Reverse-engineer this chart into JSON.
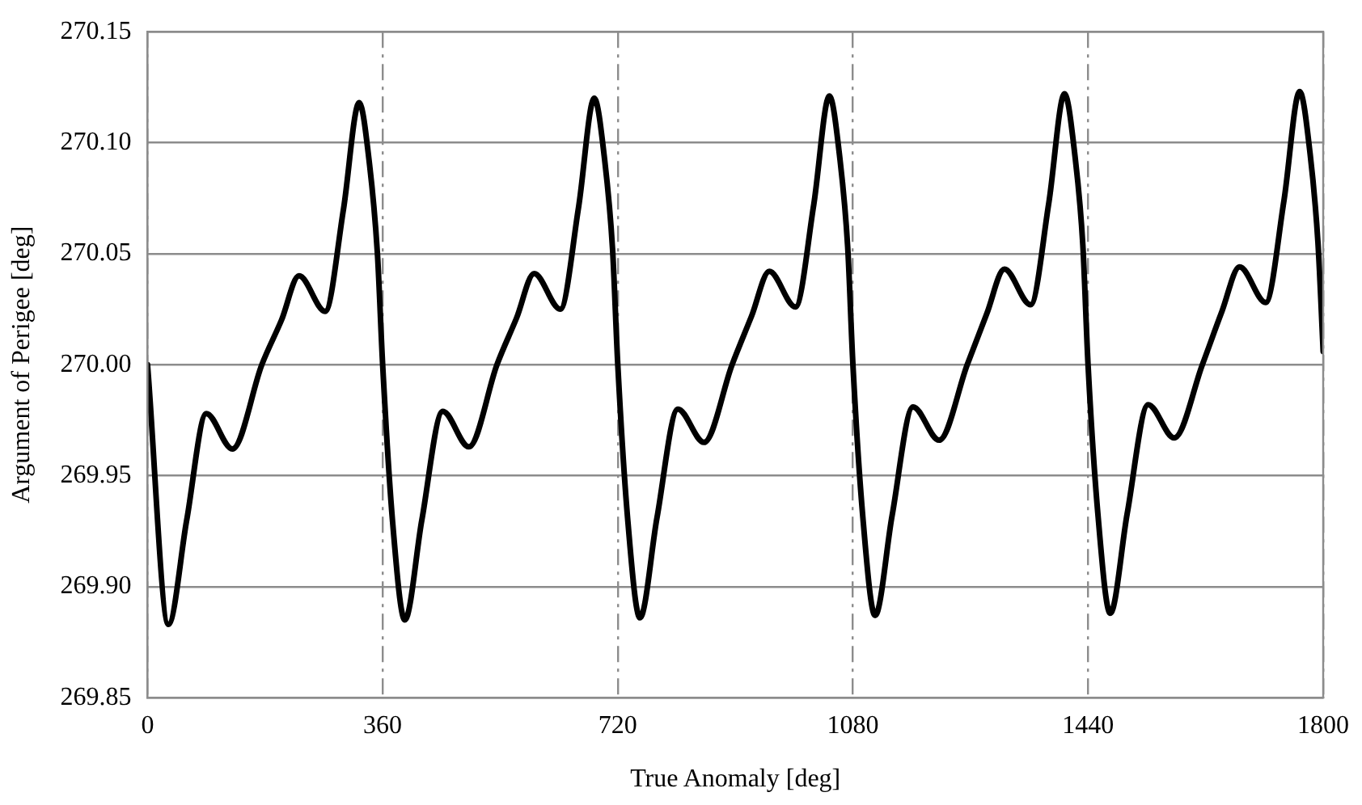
{
  "chart_data": {
    "type": "line",
    "xlabel": "True Anomaly [deg]",
    "ylabel": "Argument of Perigee [deg]",
    "xlim": [
      0,
      1800
    ],
    "xticks": [
      0,
      360,
      720,
      1080,
      1440,
      1800
    ],
    "ylim": [
      269.85,
      270.15
    ],
    "yticks": [
      {
        "value": 269.85,
        "label": "269.85"
      },
      {
        "value": 269.9,
        "label": "269.90"
      },
      {
        "value": 269.95,
        "label": "269.95"
      },
      {
        "value": 270,
        "label": "270.00"
      },
      {
        "value": 270.05,
        "label": "270.05"
      },
      {
        "value": 270.1,
        "label": "270.10"
      },
      {
        "value": 270.15,
        "label": "270.15"
      }
    ],
    "grid": true,
    "line_style": "solid",
    "marker": "none",
    "legend": false,
    "series": [
      {
        "color": "#000000",
        "x": [
          0,
          32,
          60,
          90,
          130,
          175,
          205,
          232,
          272,
          300,
          324,
          340,
          352,
          360,
          375,
          394,
          420,
          452,
          492,
          535,
          565,
          592,
          632,
          660,
          684,
          700,
          712,
          720,
          735,
          754,
          780,
          812,
          852,
          895,
          925,
          952,
          992,
          1020,
          1044,
          1060,
          1072,
          1080,
          1095,
          1114,
          1140,
          1172,
          1212,
          1255,
          1285,
          1312,
          1352,
          1380,
          1404,
          1420,
          1432,
          1440,
          1455,
          1474,
          1500,
          1532,
          1572,
          1615,
          1645,
          1672,
          1712,
          1740,
          1764,
          1780,
          1792,
          1800
        ],
        "values": [
          270.0,
          269.883,
          269.93,
          269.978,
          269.962,
          270.0,
          270.02,
          270.04,
          270.024,
          270.07,
          270.118,
          270.09,
          270.05,
          270.0,
          269.93,
          269.885,
          269.93,
          269.979,
          269.963,
          270.0,
          270.021,
          270.041,
          270.025,
          270.071,
          270.12,
          270.092,
          270.052,
          270.0,
          269.931,
          269.886,
          269.931,
          269.98,
          269.965,
          270.0,
          270.022,
          270.042,
          270.026,
          270.072,
          270.121,
          270.093,
          270.053,
          270.0,
          269.932,
          269.887,
          269.932,
          269.981,
          269.966,
          270.0,
          270.023,
          270.043,
          270.027,
          270.073,
          270.122,
          270.094,
          270.054,
          270.0,
          269.933,
          269.888,
          269.933,
          269.982,
          269.967,
          270.0,
          270.024,
          270.044,
          270.028,
          270.074,
          270.123,
          270.095,
          270.055,
          270.006
        ]
      }
    ]
  }
}
